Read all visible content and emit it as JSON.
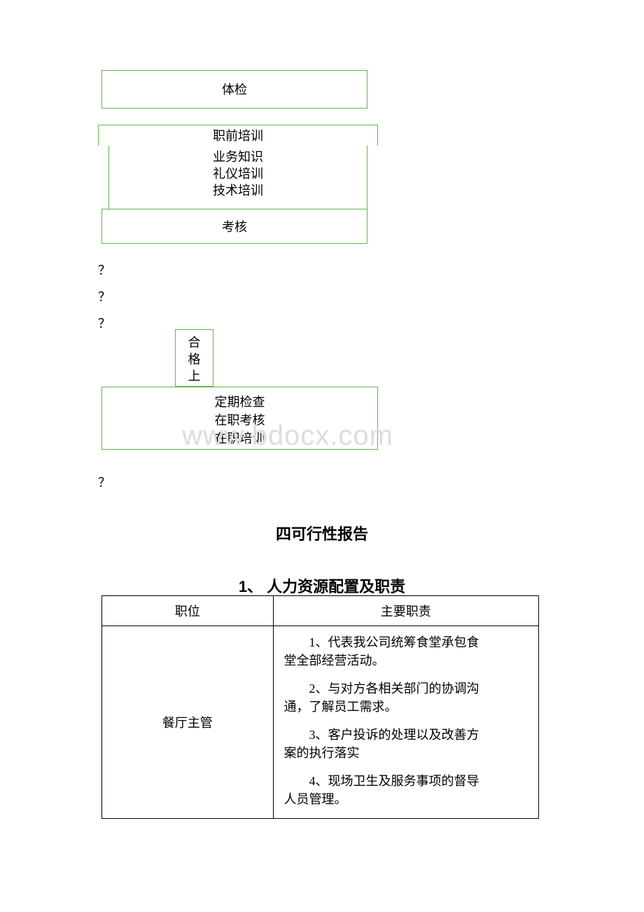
{
  "flowchart": {
    "border_color": "#5fb847",
    "font_size": 18,
    "boxes": {
      "tijian": "体检",
      "zhiqian_title": "职前培训",
      "zhiqian_item1": "业务知识",
      "zhiqian_item2": "礼仪培训",
      "zhiqian_item3": "技术培训",
      "kaohe": "考核",
      "hege_l1": "合",
      "hege_l2": "格",
      "hege_l3": "上",
      "dingqi_item1": "定期检查",
      "dingqi_item2": "在职考核",
      "dingqi_item3": "在职培训"
    },
    "question_marks": {
      "q1": "？",
      "q2": "？",
      "q3": "？",
      "q4": "？"
    }
  },
  "watermark": {
    "text": "www.bdocx.com",
    "color": "#dddddd",
    "font_size": 40
  },
  "headings": {
    "main": "四可行性报告",
    "sub": "1、 人力资源配置及职责"
  },
  "table": {
    "header": {
      "position": "职位",
      "responsibility": "主要职责"
    },
    "rows": [
      {
        "position": "餐厅主管",
        "responsibilities": [
          {
            "line1": "1、代表我公司统筹食堂承包食",
            "line2": "堂全部经营活动。"
          },
          {
            "line1": "2、与对方各相关部门的协调沟",
            "line2": "通，了解员工需求。"
          },
          {
            "line1": "3、客户投诉的处理以及改善方",
            "line2": "案的执行落实"
          },
          {
            "line1": "4、现场卫生及服务事项的督导",
            "line2": "人员管理。"
          }
        ]
      }
    ]
  }
}
